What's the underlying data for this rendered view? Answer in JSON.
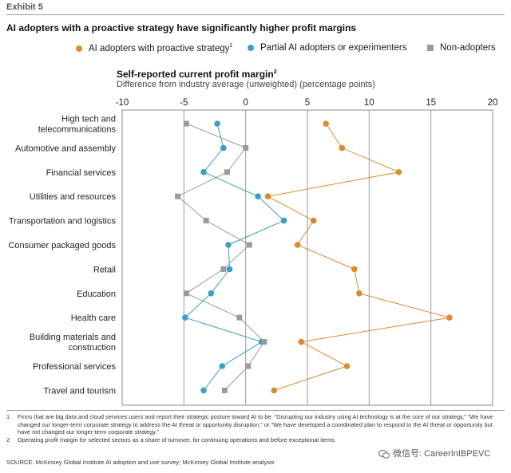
{
  "header": {
    "exhibit": "Exhibit 5",
    "title": "AI adopters with a proactive strategy have significantly higher profit margins"
  },
  "legend": [
    {
      "label": "AI adopters with proactive strategy",
      "sup": "1",
      "color": "#d98c2b",
      "marker": "circle"
    },
    {
      "label": "Partial AI adopters or experimenters",
      "sup": "",
      "color": "#3a9fc3",
      "marker": "circle"
    },
    {
      "label": "Non-adopters",
      "sup": "",
      "color": "#9a9a9a",
      "marker": "square"
    }
  ],
  "chart_data": {
    "type": "scatter",
    "title": "Self-reported current profit margin",
    "title_sup": "2",
    "subtitle": "Difference from industry average (unweighted) (percentage points)",
    "x_axis_position": "top",
    "xlim": [
      -10,
      20
    ],
    "xticks": [
      -10,
      -5,
      0,
      5,
      10,
      15,
      20
    ],
    "gridlines_at": [
      -5,
      0,
      5,
      10,
      15
    ],
    "categories": [
      [
        "High tech and",
        "telecommunications"
      ],
      [
        "Automotive and assembly"
      ],
      [
        "Financial services"
      ],
      [
        "Utilities and resources"
      ],
      [
        "Transportation and logistics"
      ],
      [
        "Consumer packaged goods"
      ],
      [
        "Retail"
      ],
      [
        "Education"
      ],
      [
        "Health care"
      ],
      [
        "Building materials and",
        "construction"
      ],
      [
        "Professional services"
      ],
      [
        "Travel and tourism"
      ]
    ],
    "series": [
      {
        "name": "AI adopters with proactive strategy",
        "color": "#d98c2b",
        "marker": "circle",
        "values": [
          6.5,
          7.8,
          12.4,
          1.8,
          5.5,
          4.2,
          8.8,
          9.2,
          16.5,
          4.5,
          8.2,
          2.3
        ]
      },
      {
        "name": "Partial AI adopters or experimenters",
        "color": "#3a9fc3",
        "marker": "circle",
        "values": [
          -2.3,
          -1.8,
          -3.4,
          1.0,
          3.1,
          -1.4,
          -1.3,
          -2.8,
          -4.9,
          1.3,
          -1.9,
          -3.4
        ]
      },
      {
        "name": "Non-adopters",
        "color": "#9a9a9a",
        "marker": "square",
        "values": [
          -4.8,
          0.0,
          -1.5,
          -5.5,
          -3.2,
          0.3,
          -1.8,
          -4.8,
          -0.5,
          1.5,
          0.2,
          -1.7
        ]
      }
    ]
  },
  "footnotes": [
    {
      "num": "1",
      "text": "Firms that are big data and cloud services users and report their strategic posture toward AI to be: “Disrupting our industry using AI technology is at the core of our strategy,” “We have changed our longer-term corporate strategy to address the AI threat or opportunity disruption,” or “We have developed a coordinated plan to respond to the AI threat or opportunity but have not changed our longer-term corporate strategy.”"
    },
    {
      "num": "2",
      "text": "Operating profit margin for selected sectors as a share of turnover, for continuing operations and before exceptional items."
    }
  ],
  "source": "SOURCE:  McKinsey Global Institute AI adoption and use survey; McKinsey Global Institute analysis",
  "watermark": "微信号: CareerInIBPEVC"
}
